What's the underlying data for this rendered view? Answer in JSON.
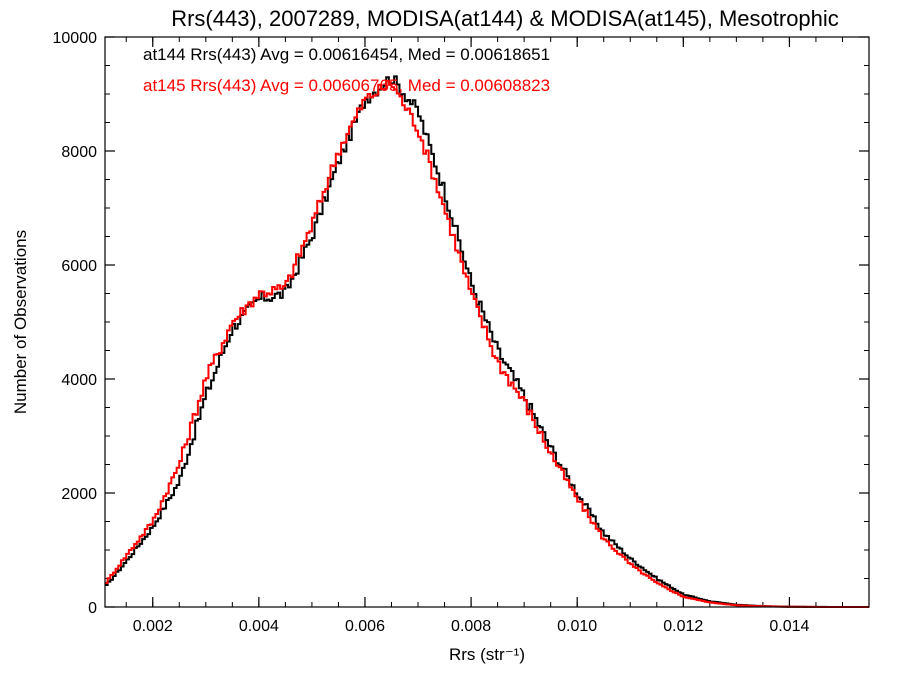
{
  "chart_data": {
    "type": "line",
    "title": "Rrs(443), 2007289, MODISA(at144) & MODISA(at145), Mesotrophic",
    "xlabel": "Rrs (str⁻¹)",
    "ylabel": "Number of Observations",
    "xlim": [
      0.0011,
      0.0155
    ],
    "ylim": [
      0,
      10000
    ],
    "x_ticks": [
      0.002,
      0.004,
      0.006,
      0.008,
      0.01,
      0.012,
      0.014
    ],
    "x_tick_labels": [
      "0.002",
      "0.004",
      "0.006",
      "0.008",
      "0.010",
      "0.012",
      "0.014"
    ],
    "y_ticks": [
      0,
      2000,
      4000,
      6000,
      8000,
      10000
    ],
    "y_tick_labels": [
      "0",
      "2000",
      "4000",
      "6000",
      "8000",
      "10000"
    ],
    "grid": false,
    "annotations": [
      {
        "text": "at144 Rrs(443) Avg = 0.00616454, Med = 0.00618651",
        "color": "#000000"
      },
      {
        "text": "at145 Rrs(443) Avg = 0.00606765, Med = 0.00608823",
        "color": "#ff0000"
      }
    ],
    "series": [
      {
        "color": "#000000",
        "style": "step",
        "x": [
          0.0011,
          0.0015,
          0.002,
          0.0025,
          0.003,
          0.0035,
          0.004,
          0.0045,
          0.005,
          0.0055,
          0.006,
          0.0065,
          0.007,
          0.0075,
          0.008,
          0.0085,
          0.009,
          0.0095,
          0.01,
          0.0105,
          0.011,
          0.0115,
          0.012,
          0.0125,
          0.013,
          0.0135,
          0.014,
          0.0145,
          0.015,
          0.0155
        ],
        "y": [
          350,
          800,
          1400,
          2200,
          3700,
          4900,
          5400,
          5500,
          6500,
          7800,
          8900,
          9300,
          8700,
          7300,
          5700,
          4500,
          3700,
          2800,
          2000,
          1300,
          850,
          500,
          220,
          100,
          40,
          15,
          5,
          2,
          0,
          0
        ]
      },
      {
        "color": "#ff0000",
        "style": "step",
        "x": [
          0.0011,
          0.0015,
          0.002,
          0.0025,
          0.003,
          0.0035,
          0.004,
          0.0045,
          0.005,
          0.0055,
          0.006,
          0.0065,
          0.007,
          0.0075,
          0.008,
          0.0085,
          0.009,
          0.0095,
          0.01,
          0.0105,
          0.011,
          0.0115,
          0.012,
          0.0125,
          0.013,
          0.0135,
          0.014,
          0.0145,
          0.015,
          0.0155
        ],
        "y": [
          400,
          900,
          1500,
          2500,
          4000,
          5000,
          5500,
          5600,
          6700,
          8000,
          8900,
          9200,
          8400,
          7000,
          5500,
          4300,
          3600,
          2700,
          1900,
          1200,
          750,
          420,
          180,
          80,
          30,
          12,
          4,
          1,
          0,
          0
        ]
      }
    ]
  }
}
